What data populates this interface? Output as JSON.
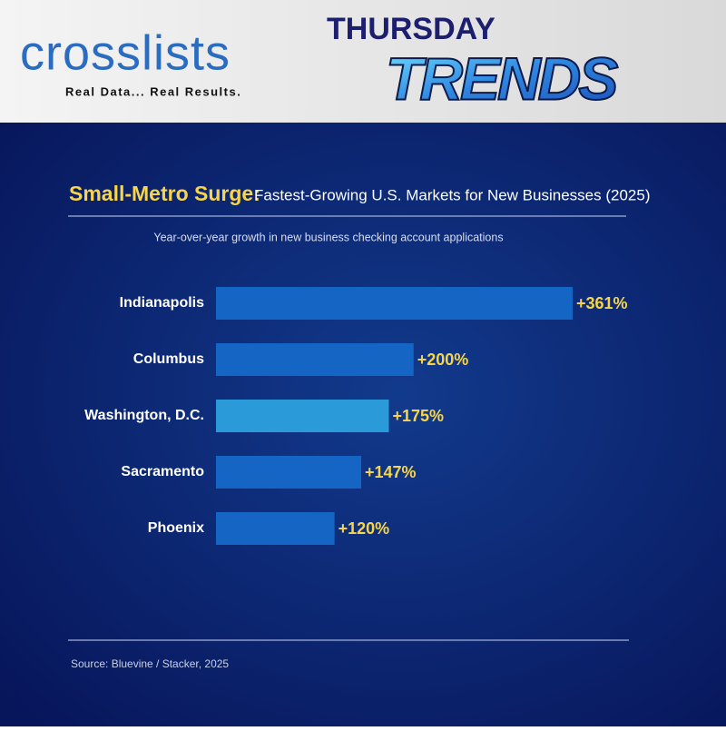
{
  "header": {
    "brand": "crosslists",
    "tagline": "Real Data... Real Results.",
    "day": "THURSDAY",
    "series_name": "TRENDS"
  },
  "chart_data": {
    "type": "bar",
    "orientation": "horizontal",
    "title_lead": "Small-Metro Surge:",
    "title": "Fastest-Growing U.S. Markets for New Businesses (2025)",
    "subtitle": "Year-over-year growth in new business checking account applications",
    "categories": [
      "Indianapolis",
      "Columbus",
      "Washington, D.C.",
      "Sacramento",
      "Phoenix"
    ],
    "values": [
      361,
      200,
      175,
      147,
      120
    ],
    "value_labels": [
      "+361%",
      "+200%",
      "+175%",
      "+147%",
      "+120%"
    ],
    "colors": [
      "#1565c4",
      "#1565c4",
      "#2b9ad8",
      "#1565c4",
      "#1565c4"
    ],
    "label_color": "#f7d54a",
    "source": "Source: Bluevine / Stacker, 2025"
  }
}
